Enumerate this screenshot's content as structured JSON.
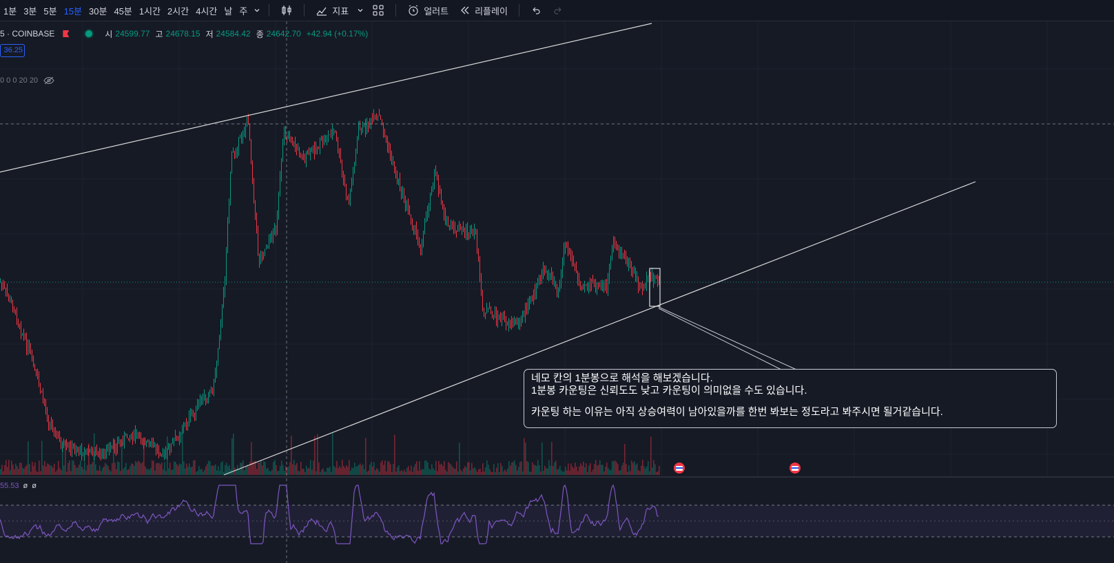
{
  "toolbar": {
    "timeframes": [
      {
        "label": "1분"
      },
      {
        "label": "3분"
      },
      {
        "label": "5분"
      },
      {
        "label": "15분",
        "active": true
      },
      {
        "label": "30분"
      },
      {
        "label": "45분"
      },
      {
        "label": "1시간"
      },
      {
        "label": "2시간"
      },
      {
        "label": "4시간"
      },
      {
        "label": "날"
      },
      {
        "label": "주"
      }
    ],
    "indicators_label": "지표",
    "alert_label": "얼러트",
    "replay_label": "리플레이"
  },
  "legend": {
    "symbol": "5 · COINBASE",
    "open_label": "시",
    "open": "24599.77",
    "high_label": "고",
    "high": "24678.15",
    "low_label": "저",
    "low": "24584.42",
    "close_label": "종",
    "close": "24642.70",
    "change": "+42.94 (+0.17%)"
  },
  "price_badge": "36.25",
  "volume_legend": "0 0 0 20 20",
  "rsi_legend": {
    "value": "55.53",
    "extra1": "ø",
    "extra2": "ø"
  },
  "note": {
    "line1": "네모 칸의 1분봉으로 해석을 해보겠습니다.",
    "line2": "1분봉 카운팅은 신뢰도도 낮고 카운팅이 의미없을 수도 있습니다.",
    "line3": "카운팅 하는 이유는 아직 상승여력이 남아있을까를 한번 봐보는 정도라고 봐주시면 될거같습니다."
  },
  "colors": {
    "up": "#089981",
    "down": "#f23645",
    "accent": "#2962ff",
    "rsi": "#7e57c2"
  }
}
